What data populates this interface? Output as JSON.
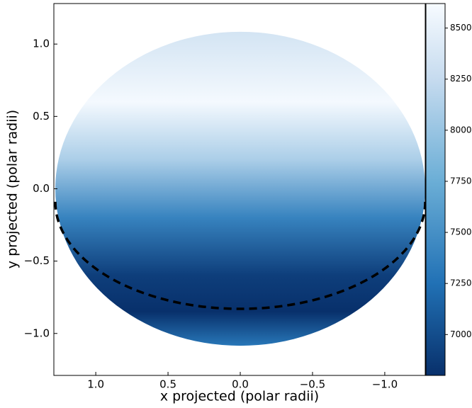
{
  "chart_data": {
    "type": "projected-map",
    "xlabel": "x projected (polar radii)",
    "ylabel": "y projected (polar radii)",
    "xlim": [
      1.29,
      -1.28
    ],
    "ylim": [
      -1.29,
      1.28
    ],
    "xticks": [
      {
        "value": 1.0,
        "label": "1.0"
      },
      {
        "value": 0.5,
        "label": "0.5"
      },
      {
        "value": 0.0,
        "label": "0.0"
      },
      {
        "value": -0.5,
        "label": "−0.5"
      },
      {
        "value": -1.0,
        "label": "−1.0"
      }
    ],
    "yticks": [
      {
        "value": -1.0,
        "label": "−1.0"
      },
      {
        "value": -0.5,
        "label": "−0.5"
      },
      {
        "value": 0.0,
        "label": "0.0"
      },
      {
        "value": 0.5,
        "label": "0.5"
      },
      {
        "value": 1.0,
        "label": "1.0"
      }
    ],
    "disk": {
      "cx": 0,
      "cy": 0,
      "rx": 1.28,
      "ry": 1.085
    },
    "equator": {
      "cy": -0.09,
      "rx": 1.28,
      "ry": 0.74,
      "color": "#000000"
    },
    "temperature_profile": {
      "y": [
        1.085,
        0.6,
        0.2,
        -0.2,
        -0.6,
        -0.85,
        -1.085
      ],
      "values": [
        8350,
        8600,
        8100,
        7400,
        6900,
        6800,
        7300
      ]
    },
    "colormap": {
      "values": [
        6800,
        7250,
        7750,
        8250,
        8620
      ],
      "colors": [
        "#08306b",
        "#2171b5",
        "#6baed6",
        "#c6dbef",
        "#f7fbff"
      ]
    },
    "clim": [
      6800,
      8620
    ],
    "cticks": [
      7000,
      7250,
      7500,
      7750,
      8000,
      8250,
      8500
    ]
  }
}
